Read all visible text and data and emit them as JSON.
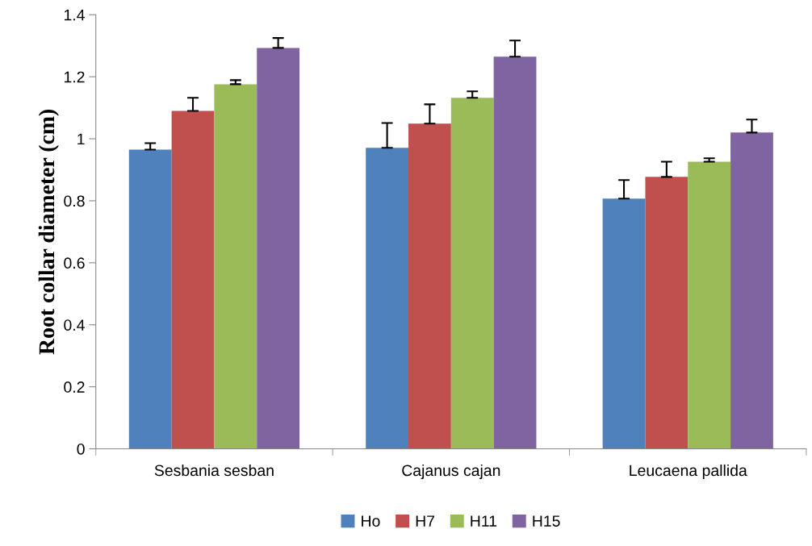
{
  "chart_data": {
    "type": "bar",
    "ylabel": "Root collar diameter (cm)",
    "categories": [
      "Sesbania sesban",
      "Cajanus cajan",
      "Leucaena pallida"
    ],
    "series": [
      {
        "name": "Ho",
        "color": "#4f81bd",
        "values": [
          0.965,
          0.971,
          0.807
        ],
        "errors": [
          [
            0.965,
            0.986
          ],
          [
            0.971,
            1.051
          ],
          [
            0.807,
            0.867
          ]
        ]
      },
      {
        "name": "H7",
        "color": "#c0504d",
        "values": [
          1.09,
          1.049,
          0.877
        ],
        "errors": [
          [
            1.09,
            1.132
          ],
          [
            1.049,
            1.111
          ],
          [
            0.877,
            0.926
          ]
        ]
      },
      {
        "name": "H11",
        "color": "#9bbb59",
        "values": [
          1.176,
          1.132,
          0.926
        ],
        "errors": [
          [
            1.176,
            1.189
          ],
          [
            1.132,
            1.153
          ],
          [
            0.926,
            0.937
          ]
        ]
      },
      {
        "name": "H15",
        "color": "#8064a2",
        "values": [
          1.293,
          1.265,
          1.02
        ],
        "errors": [
          [
            1.293,
            1.325
          ],
          [
            1.265,
            1.317
          ],
          [
            1.02,
            1.062
          ]
        ]
      }
    ],
    "ylim": [
      0,
      1.4
    ],
    "yticks": [
      0,
      0.2,
      0.4,
      0.6,
      0.8,
      1,
      1.2,
      1.4
    ],
    "grid": false,
    "legend": "bottom"
  }
}
